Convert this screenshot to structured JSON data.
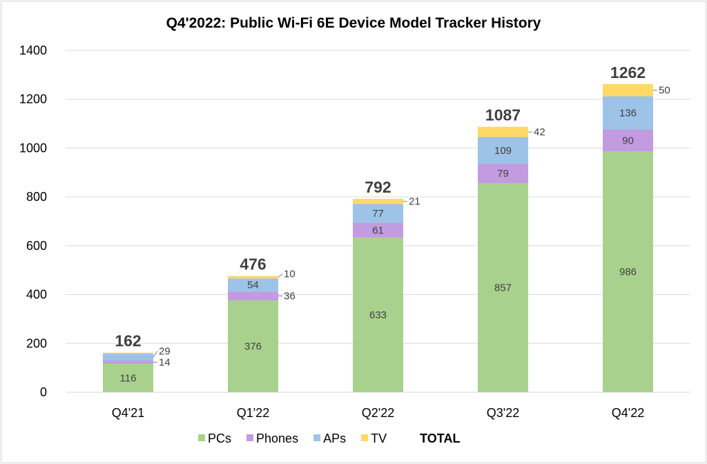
{
  "chart_data": {
    "type": "bar",
    "stacked": true,
    "title": "Q4'2022: Public Wi-Fi 6E Device Model Tracker History",
    "xlabel": "",
    "ylabel": "",
    "categories": [
      "Q4'21",
      "Q1'22",
      "Q2'22",
      "Q3'22",
      "Q4'22"
    ],
    "series": [
      {
        "name": "PCs",
        "color": "#A9D18E",
        "values": [
          116,
          376,
          633,
          857,
          986
        ]
      },
      {
        "name": "Phones",
        "color": "#C29BE0",
        "values": [
          14,
          36,
          61,
          79,
          90
        ]
      },
      {
        "name": "APs",
        "color": "#9DC3E6",
        "values": [
          29,
          54,
          77,
          109,
          136
        ]
      },
      {
        "name": "TV",
        "color": "#FFD966",
        "values": [
          3,
          10,
          21,
          42,
          50
        ]
      }
    ],
    "totals_name": "TOTAL",
    "totals": [
      162,
      476,
      792,
      1087,
      1262
    ],
    "ylim": [
      0,
      1400
    ],
    "yticks": [
      0,
      200,
      400,
      600,
      800,
      1000,
      1200,
      1400
    ],
    "grid": true,
    "legend": "bottom"
  }
}
